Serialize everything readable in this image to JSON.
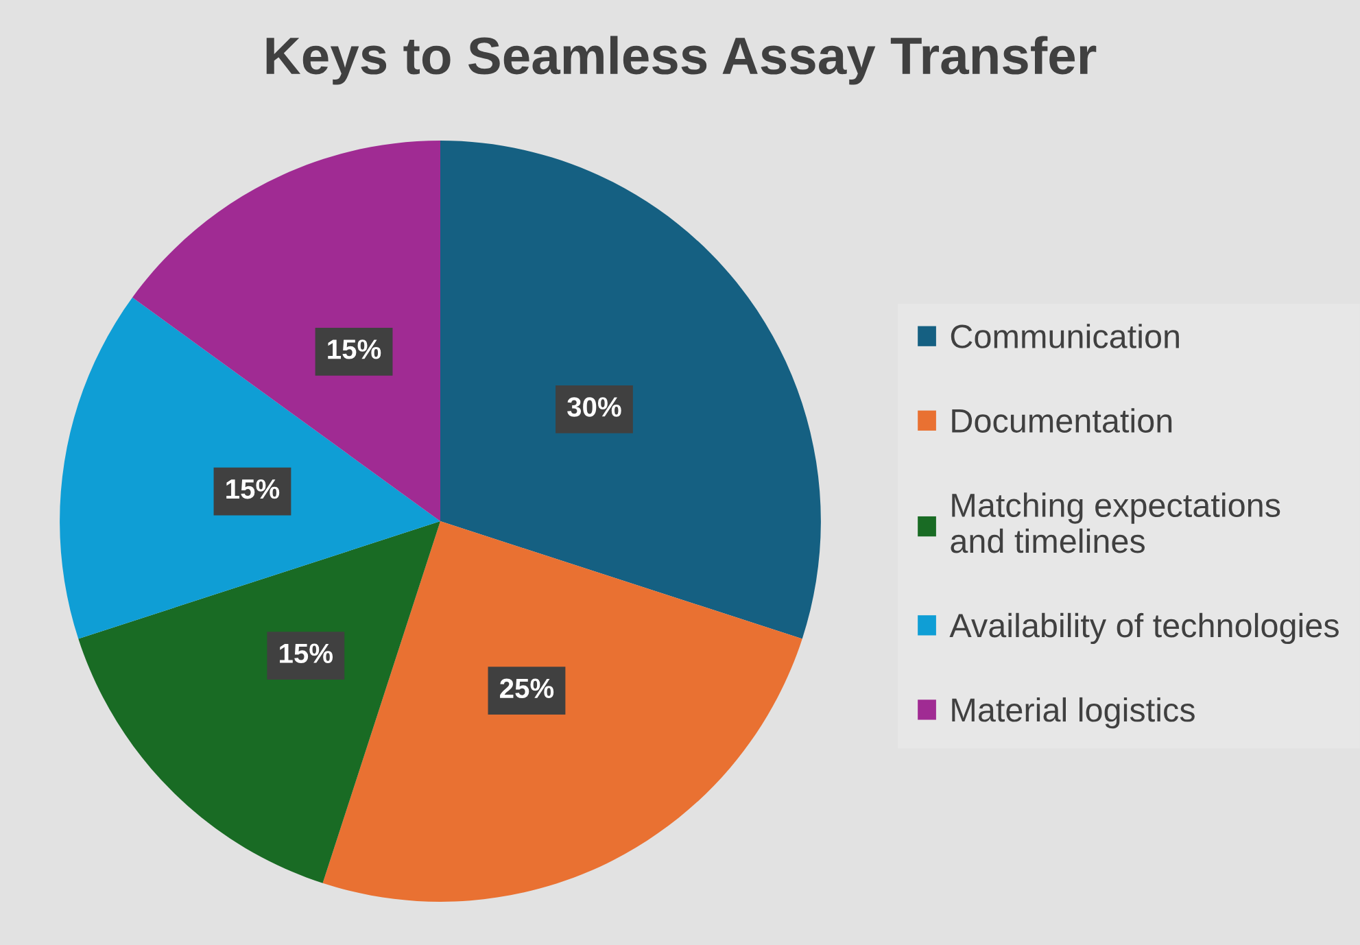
{
  "chart_data": {
    "type": "pie",
    "title": "Keys to Seamless Assay Transfer",
    "categories": [
      "Communication",
      "Documentation",
      "Matching expectations\nand timelines",
      "Availability of technologies",
      "Material logistics"
    ],
    "values": [
      30,
      25,
      15,
      15,
      15
    ],
    "colors": [
      "#156082",
      "#e97132",
      "#196b24",
      "#0f9ed5",
      "#a02b93"
    ],
    "value_labels": [
      "30%",
      "25%",
      "15%",
      "15%",
      "15%"
    ],
    "legend": "right"
  }
}
